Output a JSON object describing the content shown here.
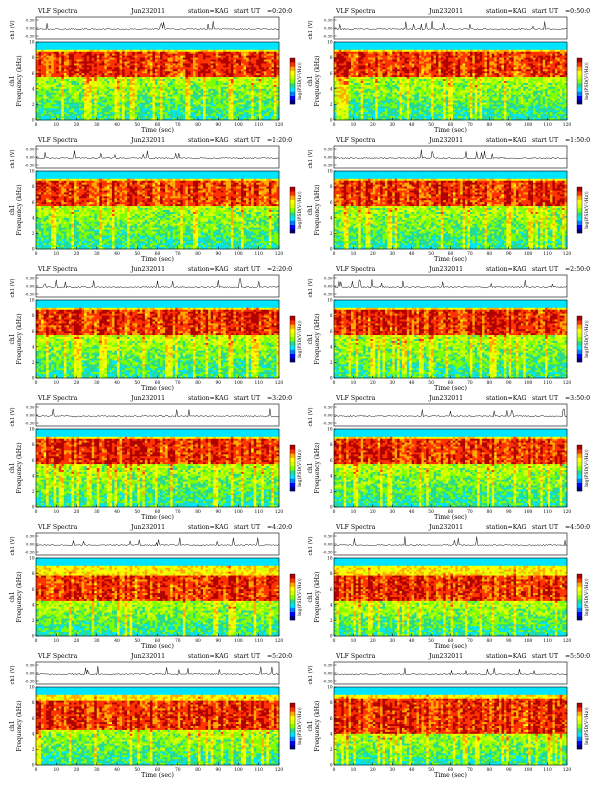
{
  "figure": {
    "columns": 2,
    "rows": 6
  },
  "labels": {
    "program": "VLF Spectra",
    "station": "station=KAG",
    "start_prefix": "start  UT",
    "ch1_axis": "ch1 (V)",
    "freq_axis_line1": "ch1",
    "freq_axis_line2": "Frequency  (kHz)",
    "time_axis": "Time  (sec)",
    "colorbar_label": "log(PSD(V²/Hz))"
  },
  "waveform_ticks": [
    "0.30",
    "0.00",
    "-0.30"
  ],
  "colors": {
    "background": "#ffffff",
    "ink": "#000000"
  },
  "chart_data": [
    {
      "type": "heatmap",
      "title": "VLF Spectra",
      "date": "Jun232011",
      "station": "station=KAG",
      "start_ut": "=0:20:0",
      "xlabel": "Time  (sec)",
      "ylabel": "Frequency  (kHz)",
      "x_ticks": [
        "0",
        "10",
        "20",
        "30",
        "40",
        "50",
        "60",
        "70",
        "80",
        "90",
        "100",
        "110",
        "120"
      ],
      "xlim": [
        0,
        120
      ],
      "y_ticks": [
        "0",
        "2",
        "4",
        "6",
        "8",
        "10"
      ],
      "ylim": [
        0,
        10
      ],
      "colorbar_label": "log(PSD(V²/Hz))",
      "band_kHz": [
        5.5,
        8.8
      ],
      "seed": 11
    },
    {
      "type": "heatmap",
      "title": "VLF Spectra",
      "date": "Jun232011",
      "station": "station=KAG",
      "start_ut": "=0:50:0",
      "xlabel": "Time  (sec)",
      "ylabel": "Frequency  (kHz)",
      "x_ticks": [
        "0",
        "10",
        "20",
        "30",
        "40",
        "50",
        "60",
        "70",
        "80",
        "90",
        "100",
        "110",
        "120"
      ],
      "xlim": [
        0,
        120
      ],
      "y_ticks": [
        "0",
        "2",
        "4",
        "6",
        "8",
        "10"
      ],
      "ylim": [
        0,
        10
      ],
      "colorbar_label": "log(PSD(V²/Hz))",
      "band_kHz": [
        5.5,
        8.8
      ],
      "seed": 23
    },
    {
      "type": "heatmap",
      "title": "VLF Spectra",
      "date": "Jun232011",
      "station": "station=KAG",
      "start_ut": "=1:20:0",
      "xlabel": "Time  (sec)",
      "ylabel": "Frequency  (kHz)",
      "x_ticks": [
        "0",
        "10",
        "20",
        "30",
        "40",
        "50",
        "60",
        "70",
        "80",
        "90",
        "100",
        "110",
        "120"
      ],
      "xlim": [
        0,
        120
      ],
      "y_ticks": [
        "0",
        "2",
        "4",
        "6",
        "8",
        "10"
      ],
      "ylim": [
        0,
        10
      ],
      "colorbar_label": "log(PSD(V²/Hz))",
      "band_kHz": [
        5.5,
        8.8
      ],
      "seed": 37
    },
    {
      "type": "heatmap",
      "title": "VLF Spectra",
      "date": "Jun232011",
      "station": "station=KAG",
      "start_ut": "=1:50:0",
      "xlabel": "Time  (sec)",
      "ylabel": "Frequency  (kHz)",
      "x_ticks": [
        "0",
        "10",
        "20",
        "30",
        "40",
        "50",
        "60",
        "70",
        "80",
        "90",
        "100",
        "110",
        "120"
      ],
      "xlim": [
        0,
        120
      ],
      "y_ticks": [
        "0",
        "2",
        "4",
        "6",
        "8",
        "10"
      ],
      "ylim": [
        0,
        10
      ],
      "colorbar_label": "log(PSD(V²/Hz))",
      "band_kHz": [
        5.5,
        8.8
      ],
      "seed": 41
    },
    {
      "type": "heatmap",
      "title": "VLF Spectra",
      "date": "Jun232011",
      "station": "station=KAG",
      "start_ut": "=2:20:0",
      "xlabel": "Time  (sec)",
      "ylabel": "Frequency  (kHz)",
      "x_ticks": [
        "0",
        "10",
        "20",
        "30",
        "40",
        "50",
        "60",
        "70",
        "80",
        "90",
        "100",
        "110",
        "120"
      ],
      "xlim": [
        0,
        120
      ],
      "y_ticks": [
        "0",
        "2",
        "4",
        "6",
        "8",
        "10"
      ],
      "ylim": [
        0,
        10
      ],
      "colorbar_label": "log(PSD(V²/Hz))",
      "band_kHz": [
        5.5,
        8.8
      ],
      "seed": 53
    },
    {
      "type": "heatmap",
      "title": "VLF Spectra",
      "date": "Jun232011",
      "station": "station=KAG",
      "start_ut": "=2:50:0",
      "xlabel": "Time  (sec)",
      "ylabel": "Frequency  (kHz)",
      "x_ticks": [
        "0",
        "10",
        "20",
        "30",
        "40",
        "50",
        "60",
        "70",
        "80",
        "90",
        "100",
        "110",
        "120"
      ],
      "xlim": [
        0,
        120
      ],
      "y_ticks": [
        "0",
        "2",
        "4",
        "6",
        "8",
        "10"
      ],
      "ylim": [
        0,
        10
      ],
      "colorbar_label": "log(PSD(V²/Hz))",
      "band_kHz": [
        5.5,
        8.8
      ],
      "seed": 67
    },
    {
      "type": "heatmap",
      "title": "VLF Spectra",
      "date": "Jun232011",
      "station": "station=KAG",
      "start_ut": "=3:20:0",
      "xlabel": "Time  (sec)",
      "ylabel": "Frequency  (kHz)",
      "x_ticks": [
        "0",
        "10",
        "20",
        "30",
        "40",
        "50",
        "60",
        "70",
        "80",
        "90",
        "100",
        "110",
        "120"
      ],
      "xlim": [
        0,
        120
      ],
      "y_ticks": [
        "0",
        "2",
        "4",
        "6",
        "8",
        "10"
      ],
      "ylim": [
        0,
        10
      ],
      "colorbar_label": "log(PSD(V²/Hz))",
      "band_kHz": [
        5.5,
        8.8
      ],
      "seed": 71
    },
    {
      "type": "heatmap",
      "title": "VLF Spectra",
      "date": "Jun232011",
      "station": "station=KAG",
      "start_ut": "=3:50:0",
      "xlabel": "Time  (sec)",
      "ylabel": "Frequency  (kHz)",
      "x_ticks": [
        "0",
        "10",
        "20",
        "30",
        "40",
        "50",
        "60",
        "70",
        "80",
        "90",
        "100",
        "110",
        "120"
      ],
      "xlim": [
        0,
        120
      ],
      "y_ticks": [
        "0",
        "2",
        "4",
        "6",
        "8",
        "10"
      ],
      "ylim": [
        0,
        10
      ],
      "colorbar_label": "log(PSD(V²/Hz))",
      "band_kHz": [
        5.5,
        8.8
      ],
      "seed": 83
    },
    {
      "type": "heatmap",
      "title": "VLF Spectra",
      "date": "Jun232011",
      "station": "station=KAG",
      "start_ut": "=4:20:0",
      "xlabel": "Time  (sec)",
      "ylabel": "Frequency  (kHz)",
      "x_ticks": [
        "0",
        "10",
        "20",
        "30",
        "40",
        "50",
        "60",
        "70",
        "80",
        "90",
        "100",
        "110",
        "120"
      ],
      "xlim": [
        0,
        120
      ],
      "y_ticks": [
        "0",
        "2",
        "4",
        "6",
        "8",
        "10"
      ],
      "ylim": [
        0,
        10
      ],
      "colorbar_label": "log(PSD(V²/Hz))",
      "band_kHz": [
        4.5,
        7.8
      ],
      "seed": 97
    },
    {
      "type": "heatmap",
      "title": "VLF Spectra",
      "date": "Jun232011",
      "station": "station=KAG",
      "start_ut": "=4:50:0",
      "xlabel": "Time  (sec)",
      "ylabel": "Frequency  (kHz)",
      "x_ticks": [
        "0",
        "10",
        "20",
        "30",
        "40",
        "50",
        "60",
        "70",
        "80",
        "90",
        "100",
        "110",
        "120"
      ],
      "xlim": [
        0,
        120
      ],
      "y_ticks": [
        "0",
        "2",
        "4",
        "6",
        "8",
        "10"
      ],
      "ylim": [
        0,
        10
      ],
      "colorbar_label": "log(PSD(V²/Hz))",
      "band_kHz": [
        4.5,
        7.8
      ],
      "seed": 101
    },
    {
      "type": "heatmap",
      "title": "VLF Spectra",
      "date": "Jun232011",
      "station": "station=KAG",
      "start_ut": "=5:20:0",
      "xlabel": "Time  (sec)",
      "ylabel": "Frequency  (kHz)",
      "x_ticks": [
        "0",
        "10",
        "20",
        "30",
        "40",
        "50",
        "60",
        "70",
        "80",
        "90",
        "100",
        "110",
        "120"
      ],
      "xlim": [
        0,
        120
      ],
      "y_ticks": [
        "0",
        "2",
        "4",
        "6",
        "8",
        "10"
      ],
      "ylim": [
        0,
        10
      ],
      "colorbar_label": "log(PSD(V²/Hz))",
      "band_kHz": [
        4.5,
        8.2
      ],
      "seed": 113
    },
    {
      "type": "heatmap",
      "title": "VLF Spectra",
      "date": "Jun232011",
      "station": "station=KAG",
      "start_ut": "=5:50:0",
      "xlabel": "Time  (sec)",
      "ylabel": "Frequency  (kHz)",
      "x_ticks": [
        "0",
        "10",
        "20",
        "30",
        "40",
        "50",
        "60",
        "70",
        "80",
        "90",
        "100",
        "110",
        "120"
      ],
      "xlim": [
        0,
        120
      ],
      "y_ticks": [
        "0",
        "2",
        "4",
        "6",
        "8",
        "10"
      ],
      "ylim": [
        0,
        10
      ],
      "colorbar_label": "log(PSD(V²/Hz))",
      "band_kHz": [
        4.0,
        8.5
      ],
      "seed": 127
    }
  ]
}
